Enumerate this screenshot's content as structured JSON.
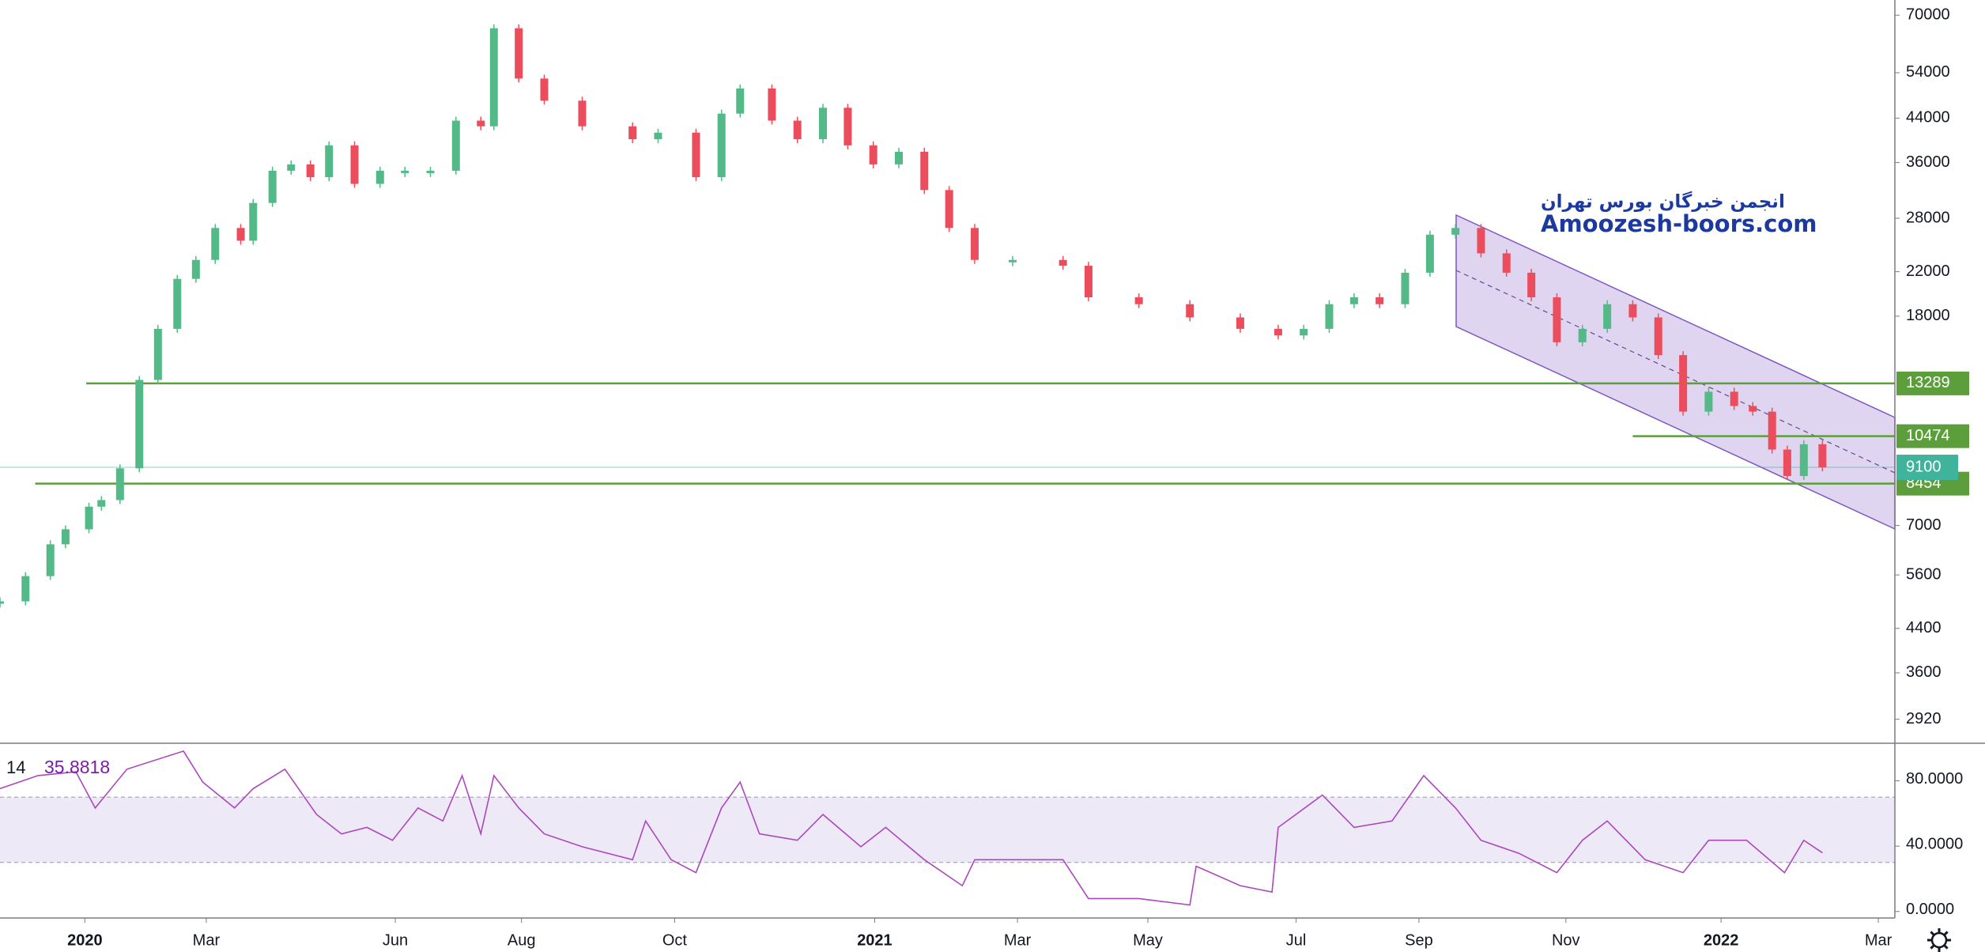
{
  "chart_data": [
    {
      "type": "candlestick",
      "x": [
        -1.23,
        -0.86,
        -0.5,
        -0.28,
        0.06,
        0.24,
        0.51,
        0.79,
        1.06,
        1.34,
        1.61,
        1.89,
        2.26,
        2.44,
        2.72,
        2.99,
        3.27,
        3.54,
        3.91,
        4.28,
        4.64,
        5.01,
        5.38,
        5.74,
        5.93,
        6.29,
        6.66,
        7.21,
        7.94,
        8.31,
        8.86,
        9.23,
        9.5,
        9.96,
        10.33,
        10.7,
        11.06,
        11.43,
        11.8,
        12.17,
        12.53,
        12.9,
        13.45,
        14.18,
        14.55,
        15.28,
        16.02,
        16.75,
        17.3,
        17.67,
        18.04,
        18.4,
        18.77,
        19.14,
        19.5,
        19.87,
        20.24,
        20.61,
        20.97,
        21.34,
        21.71,
        22.07,
        22.44,
        22.81,
        23.17,
        23.54,
        23.91,
        24.18,
        24.46,
        24.68,
        24.92,
        25.19
      ],
      "values": [
        4970,
        5570,
        6430,
        6880,
        7620,
        7850,
        9060,
        13500,
        17000,
        21300,
        23200,
        26800,
        25300,
        30000,
        34700,
        35700,
        33700,
        38900,
        32700,
        34700,
        34700,
        34700,
        43500,
        42400,
        66000,
        52600,
        47600,
        42400,
        40000,
        41200,
        33700,
        44900,
        50300,
        43500,
        40000,
        46100,
        38900,
        35700,
        37800,
        31800,
        26800,
        23200,
        23200,
        22600,
        19600,
        19000,
        17900,
        17000,
        16500,
        17000,
        19000,
        19600,
        19000,
        21900,
        26000,
        26800,
        23900,
        21900,
        19600,
        16000,
        17000,
        19000,
        17900,
        15100,
        11700,
        12800,
        12000,
        11700,
        9860,
        8750,
        10100,
        9100
      ],
      "up_color": "#53b987",
      "down_color": "#eb4d5c",
      "xlim": [
        -1.23,
        26.24
      ],
      "ylim": [
        2620,
        74970
      ],
      "log_scale": true,
      "yticks": [
        70000,
        54000,
        44000,
        36000,
        28000,
        22000,
        18000,
        7000,
        5600,
        4400,
        3600,
        2920
      ],
      "levels": [
        {
          "value": 13289,
          "x_start": 0.02
        },
        {
          "value": 10474,
          "x_start": 22.44
        },
        {
          "value": 8454,
          "x_start": -0.72
        }
      ],
      "level_color": "#5c9e3b",
      "last_price": 9100,
      "last_price_color": "#3fb39b",
      "annotations": [
        "انجمن خبرگان بورس تهران",
        "Amoozesh-boors.com"
      ]
    },
    {
      "type": "line",
      "period": 14,
      "last_value": 35.8818,
      "color": "#ab47bc",
      "x": [
        -1.23,
        -0.68,
        -0.13,
        0.15,
        0.61,
        1.43,
        1.71,
        2.17,
        2.44,
        2.9,
        3.36,
        3.72,
        4.09,
        4.46,
        4.83,
        5.19,
        5.47,
        5.74,
        5.93,
        6.29,
        6.66,
        7.21,
        7.94,
        8.13,
        8.5,
        8.86,
        9.23,
        9.5,
        9.78,
        10.33,
        10.7,
        11.25,
        11.61,
        12.17,
        12.72,
        12.9,
        13.45,
        14.18,
        14.55,
        15.28,
        16.02,
        16.11,
        16.75,
        17.21,
        17.3,
        17.94,
        18.4,
        18.95,
        19.41,
        19.87,
        20.24,
        20.79,
        21.34,
        21.71,
        22.07,
        22.62,
        23.17,
        23.54,
        24.09,
        24.64,
        24.92,
        25.19
      ],
      "values": [
        75.2,
        83.2,
        85.5,
        63.4,
        87.1,
        98.2,
        79.2,
        63.4,
        75.2,
        87.1,
        59.4,
        47.5,
        51.5,
        43.6,
        63.4,
        55.4,
        83.2,
        47.5,
        83.2,
        63.4,
        47.5,
        39.6,
        31.7,
        55.4,
        31.7,
        23.8,
        63.4,
        79.2,
        47.5,
        43.6,
        59.4,
        39.6,
        51.5,
        31.7,
        15.8,
        31.7,
        31.7,
        31.7,
        7.9,
        7.9,
        4.0,
        27.7,
        15.8,
        11.9,
        51.5,
        71.3,
        51.5,
        55.4,
        83.2,
        63.4,
        43.6,
        35.6,
        23.8,
        43.6,
        55.4,
        31.7,
        23.8,
        43.6,
        43.6,
        23.8,
        43.6,
        35.9
      ],
      "xlim": [
        -1.23,
        26.24
      ],
      "ylim": [
        -4,
        103
      ],
      "yticks": [
        {
          "value": 80,
          "label": "80.0000"
        },
        {
          "value": 40,
          "label": "40.0000"
        },
        {
          "value": 0,
          "label": "0.0000"
        }
      ],
      "bands": [
        30,
        70
      ],
      "xticks": [
        {
          "value": 0,
          "label": "2020"
        },
        {
          "value": 1.76,
          "label": "Mar"
        },
        {
          "value": 4.5,
          "label": "Jun"
        },
        {
          "value": 6.33,
          "label": "Aug"
        },
        {
          "value": 8.55,
          "label": "Oct"
        },
        {
          "value": 11.45,
          "label": "2021"
        },
        {
          "value": 13.52,
          "label": "Mar"
        },
        {
          "value": 15.41,
          "label": "May"
        },
        {
          "value": 17.56,
          "label": "Jul"
        },
        {
          "value": 19.34,
          "label": "Sep"
        },
        {
          "value": 21.47,
          "label": "Nov"
        },
        {
          "value": 23.72,
          "label": "2022"
        },
        {
          "value": 26.0,
          "label": "Mar"
        }
      ]
    }
  ]
}
